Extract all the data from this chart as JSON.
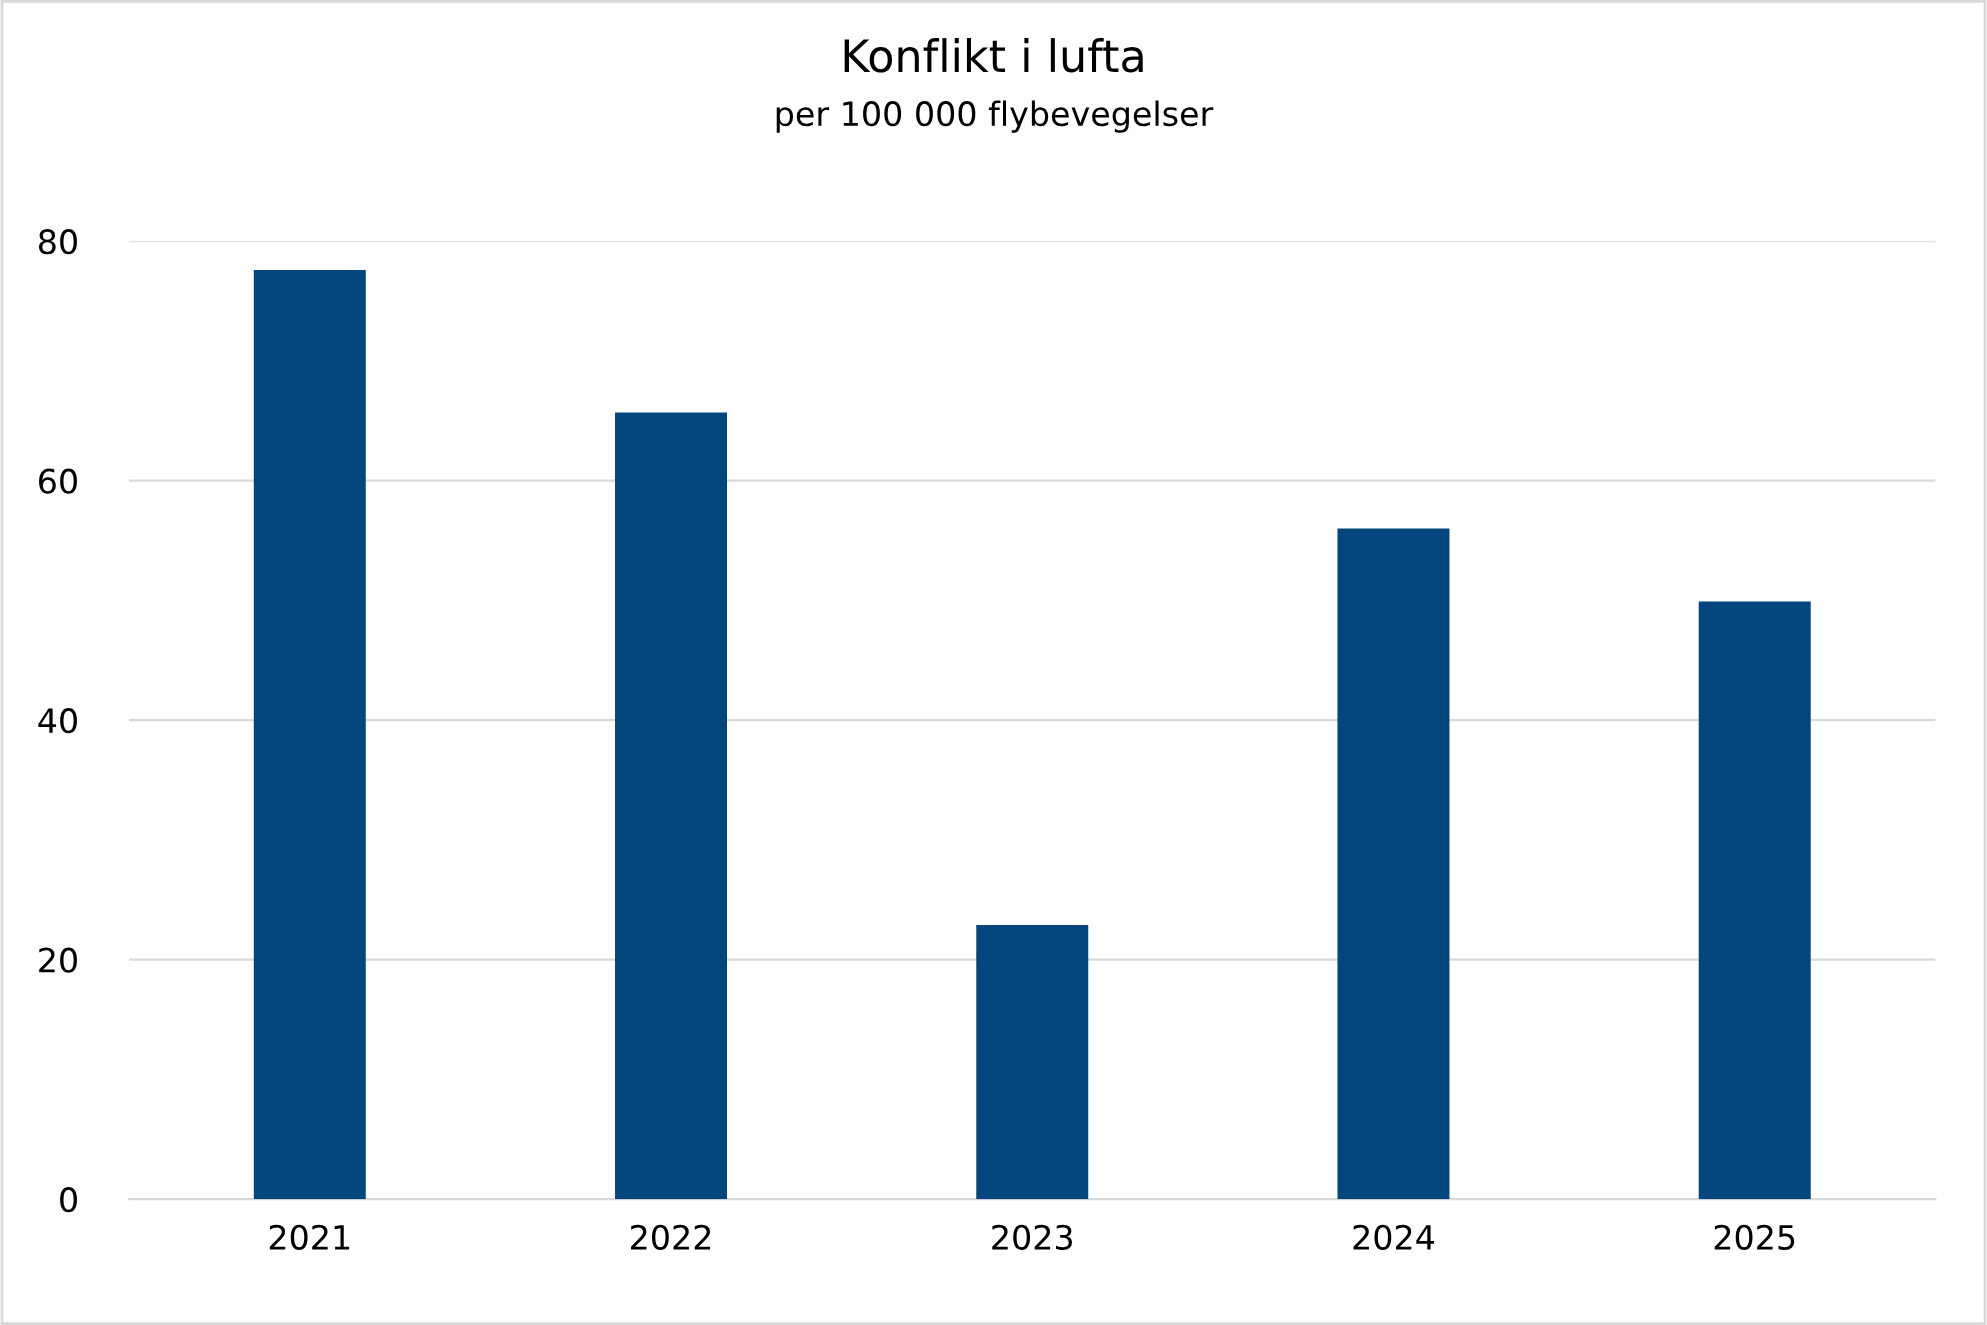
{
  "chart_data": {
    "type": "bar",
    "title": "Konflikt i lufta",
    "subtitle": "per 100 000 flybevegelser",
    "categories": [
      "2021",
      "2022",
      "2023",
      "2024",
      "2025"
    ],
    "values": [
      77.6,
      65.7,
      22.9,
      56.0,
      49.9
    ],
    "color": "#03467d",
    "ylim": [
      0,
      80
    ],
    "yticks": [
      0,
      20,
      40,
      60,
      80
    ],
    "grid": "y",
    "legend": false
  }
}
